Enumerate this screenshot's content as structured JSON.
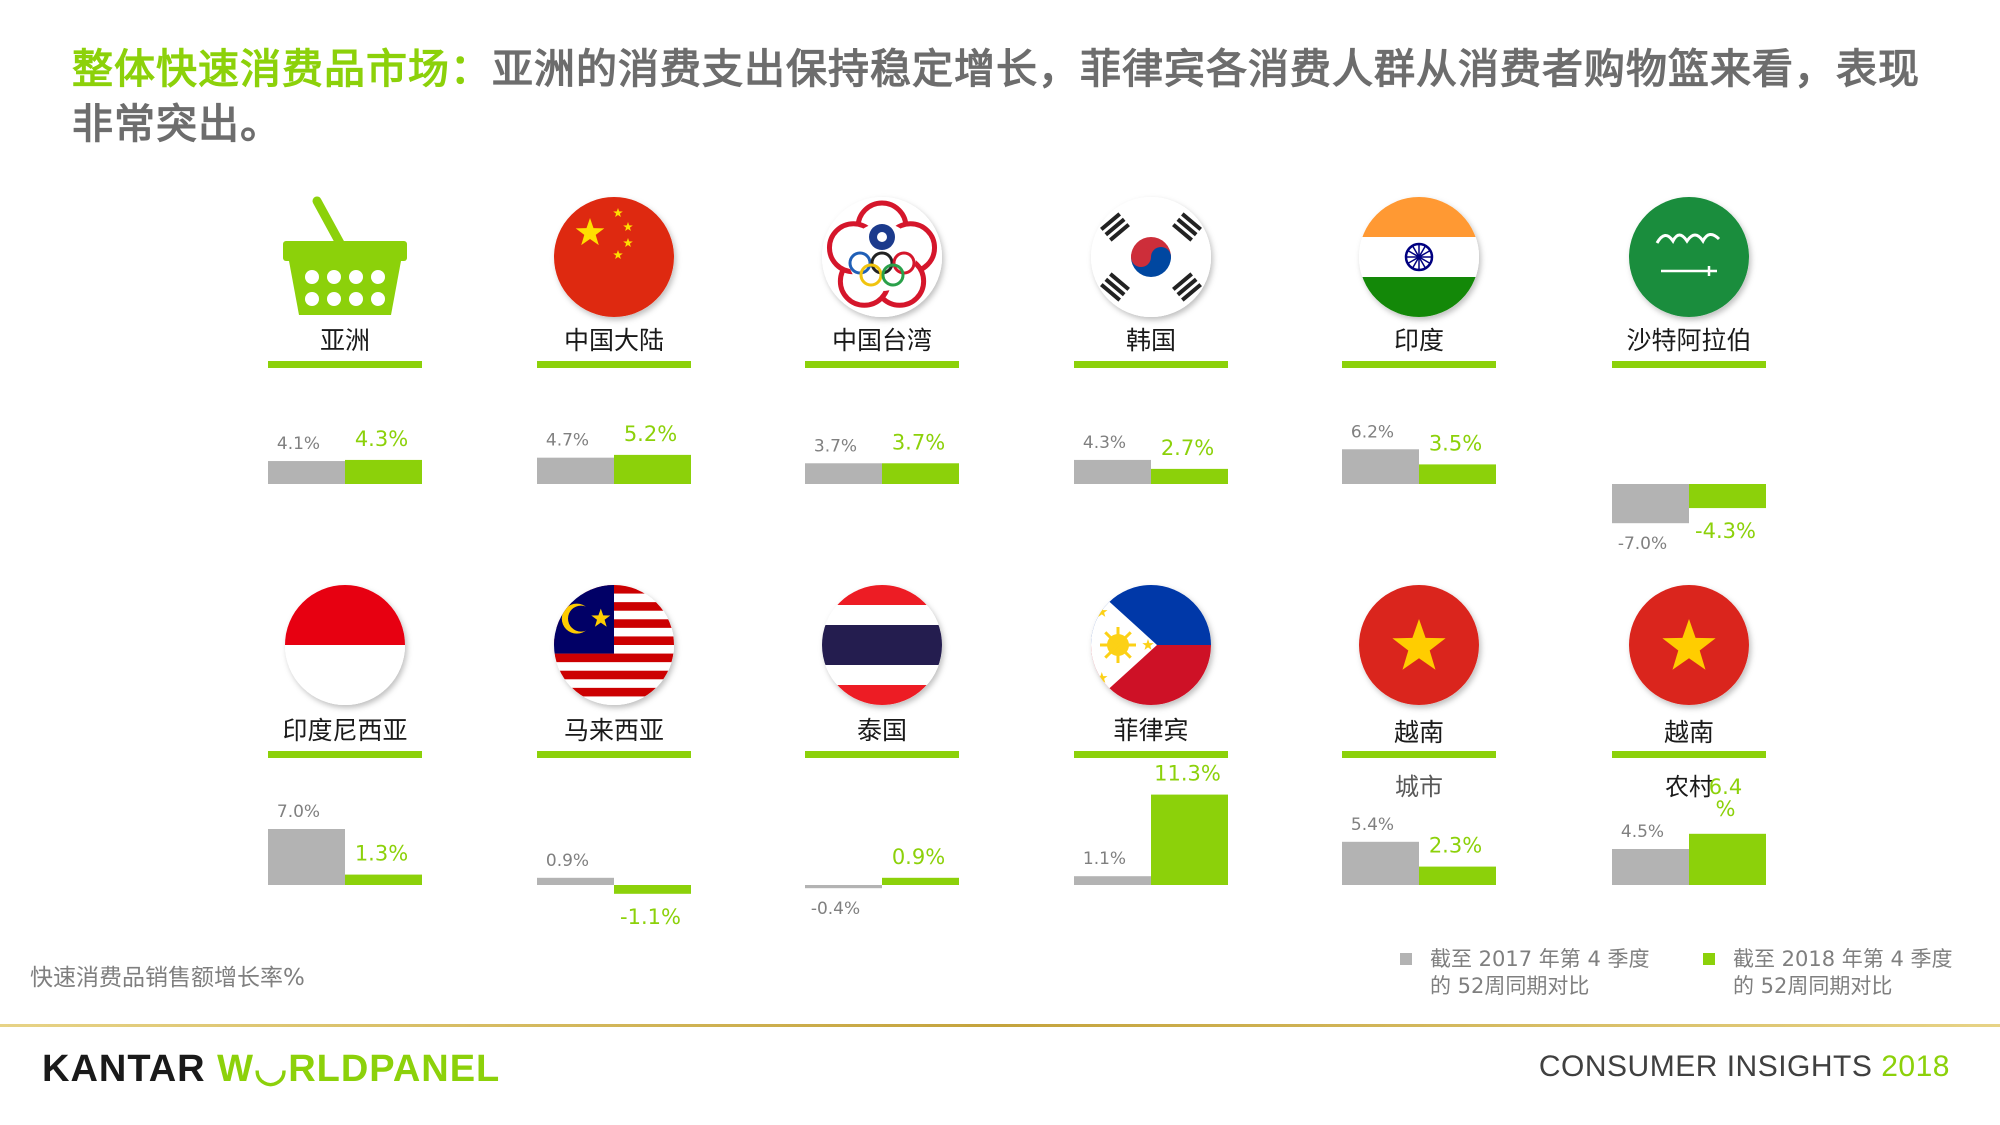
{
  "title": {
    "highlight": "整体快速消费品市场：",
    "rest": "亚洲的消费支出保持稳定增长，菲律宾各消费人群从消费者购物篮来看，表现非常突出。"
  },
  "colors": {
    "green": "#8cd10a",
    "gray": "#b3b3b3",
    "prev_label": "#808080"
  },
  "chart_data": {
    "type": "bar",
    "title": "",
    "ylabel": "快速消费品销售额增长率%",
    "series": [
      {
        "name": "截至 2017 年第 4 季度的 52周同期对比",
        "color": "#b3b3b3",
        "values": [
          4.1,
          4.7,
          3.7,
          4.3,
          6.2,
          -7.0,
          7.0,
          0.9,
          -0.4,
          1.1,
          5.4,
          4.5
        ]
      },
      {
        "name": "截至 2018 年第 4 季度的 52周同期对比",
        "color": "#8cd10a",
        "values": [
          4.3,
          5.2,
          3.7,
          2.7,
          3.5,
          -4.3,
          1.3,
          -1.1,
          0.9,
          11.3,
          2.3,
          6.4
        ]
      }
    ],
    "categories": [
      "亚洲",
      "中国大陆",
      "中国台湾",
      "韩国",
      "印度",
      "沙特阿拉伯",
      "印度尼西亚",
      "马来西亚",
      "泰国",
      "菲律宾",
      "越南 城市",
      "越南 农村"
    ],
    "panels": [
      {
        "label": "亚洲",
        "sublabel": "",
        "icon": "basket-icon",
        "prev": "4.1%",
        "curr": "4.3%"
      },
      {
        "label": "中国大陆",
        "sublabel": "",
        "icon": "china-flag-icon",
        "prev": "4.7%",
        "curr": "5.2%"
      },
      {
        "label": "中国台湾",
        "sublabel": "",
        "icon": "chinese-taipei-flag-icon",
        "prev": "3.7%",
        "curr": "3.7%"
      },
      {
        "label": "韩国",
        "sublabel": "",
        "icon": "korea-flag-icon",
        "prev": "4.3%",
        "curr": "2.7%"
      },
      {
        "label": "印度",
        "sublabel": "",
        "icon": "india-flag-icon",
        "prev": "6.2%",
        "curr": "3.5%"
      },
      {
        "label": "沙特阿拉伯",
        "sublabel": "",
        "icon": "saudi-flag-icon",
        "prev": "-7.0%",
        "curr": "-4.3%"
      },
      {
        "label": "印度尼西亚",
        "sublabel": "",
        "icon": "indonesia-flag-icon",
        "prev": "7.0%",
        "curr": "1.3%"
      },
      {
        "label": "马来西亚",
        "sublabel": "",
        "icon": "malaysia-flag-icon",
        "prev": "0.9%",
        "curr": "-1.1%"
      },
      {
        "label": "泰国",
        "sublabel": "",
        "icon": "thailand-flag-icon",
        "prev": "-0.4%",
        "curr": "0.9%"
      },
      {
        "label": "菲律宾",
        "sublabel": "",
        "icon": "philippines-flag-icon",
        "prev": "1.1%",
        "curr": "11.3%"
      },
      {
        "label": "越南",
        "sublabel": "城市",
        "icon": "vietnam-flag-icon",
        "prev": "5.4%",
        "curr": "2.3%"
      },
      {
        "label": "越南",
        "sublabel": "农村",
        "icon": "vietnam-flag-icon",
        "prev": "4.5%",
        "curr": "6.4\n%"
      }
    ],
    "legend": "bottom-right",
    "grid": false
  },
  "footer": {
    "sub_label": "快速消费品销售额增长率%",
    "legend_prev": "截至 2017 年第 4 季度的 52周同期对比",
    "legend_curr": "截至 2018 年第 4 季度的 52周同期对比",
    "brand_k": "KANTAR",
    "brand_w": "W◡RLDPANEL",
    "ci_text": "CONSUMER INSIGHTS",
    "ci_year": "2018"
  }
}
